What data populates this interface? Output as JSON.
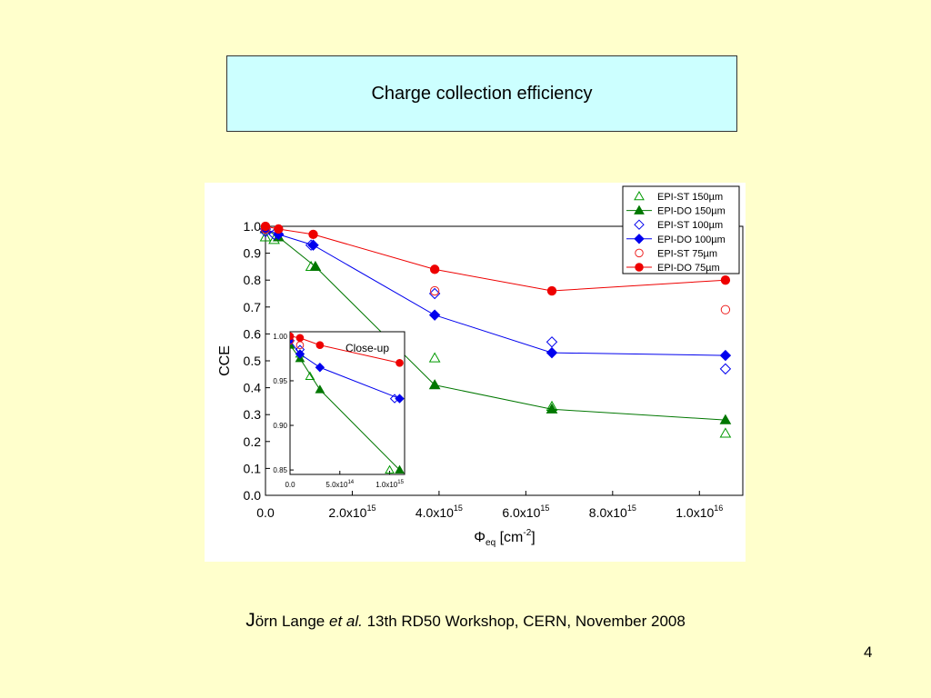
{
  "slide": {
    "title": "Charge collection efficiency",
    "citation": {
      "initial": "J",
      "author": "örn Lange ",
      "etal": "et al.",
      "rest": " 13th RD50 Workshop, CERN, November 2008"
    },
    "page_number": "4"
  },
  "chart_data": [
    {
      "type": "line",
      "xlabel": "Φeq [cm-2]",
      "ylabel": "CCE",
      "xlim": [
        0,
        1.1e+16
      ],
      "ylim": [
        0,
        1.0
      ],
      "x_ticks": [
        {
          "value": 0,
          "mantissa": "0.0",
          "exp": ""
        },
        {
          "value": 2000000000000000.0,
          "mantissa": "2.0x10",
          "exp": "15"
        },
        {
          "value": 4000000000000000.0,
          "mantissa": "4.0x10",
          "exp": "15"
        },
        {
          "value": 6000000000000000.0,
          "mantissa": "6.0x10",
          "exp": "15"
        },
        {
          "value": 8000000000000000.0,
          "mantissa": "8.0x10",
          "exp": "15"
        },
        {
          "value": 1e+16,
          "mantissa": "1.0x10",
          "exp": "16"
        }
      ],
      "y_ticks": [
        "0.0",
        "0.1",
        "0.2",
        "0.3",
        "0.4",
        "0.5",
        "0.6",
        "0.7",
        "0.8",
        "0.9",
        "1.0"
      ],
      "legend_position": "top-right",
      "series": [
        {
          "name": "EPI-ST 150µm",
          "color": "#009900",
          "marker": "triangle",
          "filled": false,
          "line": false,
          "x": [
            0.0,
            200000000000000.0,
            1050000000000000.0,
            3900000000000000.0,
            6600000000000000.0,
            1.06e+16
          ],
          "y": [
            0.96,
            0.95,
            0.85,
            0.51,
            0.33,
            0.23
          ]
        },
        {
          "name": "EPI-DO 150µm",
          "color": "#007700",
          "marker": "triangle",
          "filled": true,
          "line": true,
          "x": [
            0.0,
            300000000000000.0,
            1150000000000000.0,
            3900000000000000.0,
            6600000000000000.0,
            1.06e+16
          ],
          "y": [
            0.99,
            0.96,
            0.85,
            0.41,
            0.32,
            0.28
          ]
        },
        {
          "name": "EPI-ST 100µm",
          "color": "#0000ee",
          "marker": "diamond",
          "filled": false,
          "line": false,
          "x": [
            0.0,
            200000000000000.0,
            1050000000000000.0,
            3900000000000000.0,
            6600000000000000.0,
            1.06e+16
          ],
          "y": [
            0.98,
            0.97,
            0.93,
            0.75,
            0.57,
            0.47
          ]
        },
        {
          "name": "EPI-DO 100µm",
          "color": "#0000ee",
          "marker": "diamond",
          "filled": true,
          "line": true,
          "x": [
            0.0,
            300000000000000.0,
            1100000000000000.0,
            3900000000000000.0,
            6600000000000000.0,
            1.06e+16
          ],
          "y": [
            0.99,
            0.97,
            0.93,
            0.67,
            0.53,
            0.52
          ]
        },
        {
          "name": "EPI-ST 75µm",
          "color": "#ee2222",
          "marker": "circle",
          "filled": false,
          "line": false,
          "x": [
            0.0,
            1.06e+16,
            3900000000000000.0
          ],
          "y": [
            0.99,
            0.69,
            0.76
          ]
        },
        {
          "name": "EPI-DO 75µm",
          "color": "#ee0000",
          "marker": "circle",
          "filled": true,
          "line": true,
          "x": [
            0.0,
            300000000000000.0,
            1100000000000000.0,
            3900000000000000.0,
            6600000000000000.0,
            1.06e+16
          ],
          "y": [
            1.0,
            0.99,
            0.97,
            0.84,
            0.76,
            0.8
          ]
        }
      ]
    },
    {
      "type": "line",
      "title": "Close-up",
      "xlim": [
        0,
        1150000000000000.0
      ],
      "ylim": [
        0.845,
        1.005
      ],
      "x_ticks": [
        {
          "value": 0,
          "mantissa": "0.0",
          "exp": ""
        },
        {
          "value": 500000000000000.0,
          "mantissa": "5.0x10",
          "exp": "14"
        },
        {
          "value": 1000000000000000.0,
          "mantissa": "1.0x10",
          "exp": "15"
        }
      ],
      "y_ticks": [
        "0.85",
        "0.90",
        "0.95",
        "1.00"
      ],
      "series": [
        {
          "name": "EPI-ST 150µm",
          "color": "#009900",
          "marker": "triangle",
          "filled": false,
          "line": false,
          "x": [
            100000000000000.0,
            200000000000000.0,
            1000000000000000.0
          ],
          "y": [
            0.98,
            0.955,
            0.85
          ]
        },
        {
          "name": "EPI-DO 150µm",
          "color": "#007700",
          "marker": "triangle",
          "filled": true,
          "line": true,
          "x": [
            0.0,
            100000000000000.0,
            300000000000000.0,
            1100000000000000.0
          ],
          "y": [
            0.99,
            0.975,
            0.94,
            0.85
          ]
        },
        {
          "name": "EPI-ST 100µm",
          "color": "#0000ee",
          "marker": "diamond",
          "filled": false,
          "line": false,
          "x": [
            100000000000000.0,
            1050000000000000.0
          ],
          "y": [
            0.985,
            0.93
          ]
        },
        {
          "name": "EPI-DO 100µm",
          "color": "#0000ee",
          "marker": "diamond",
          "filled": true,
          "line": true,
          "x": [
            0.0,
            100000000000000.0,
            300000000000000.0,
            1100000000000000.0
          ],
          "y": [
            0.995,
            0.98,
            0.965,
            0.93
          ]
        },
        {
          "name": "EPI-ST 75µm",
          "color": "#ee2222",
          "marker": "circle",
          "filled": false,
          "line": false,
          "x": [
            0.0,
            100000000000000.0
          ],
          "y": [
            0.995,
            0.99
          ]
        },
        {
          "name": "EPI-DO 75µm",
          "color": "#ee0000",
          "marker": "circle",
          "filled": true,
          "line": true,
          "x": [
            0.0,
            100000000000000.0,
            300000000000000.0,
            1100000000000000.0
          ],
          "y": [
            1.0,
            0.998,
            0.99,
            0.97
          ]
        }
      ]
    }
  ]
}
